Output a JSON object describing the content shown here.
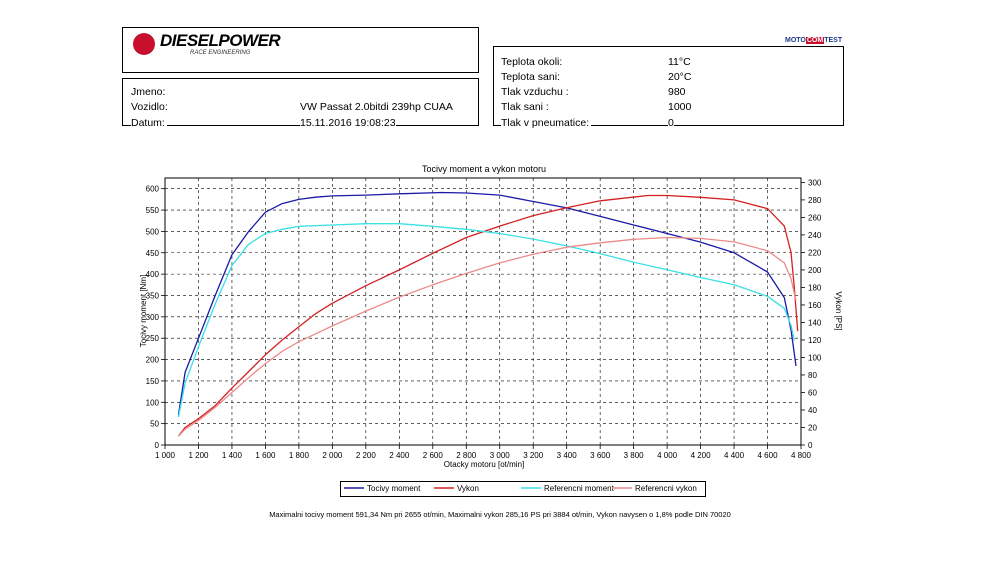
{
  "header": {
    "brand": "DIESELPOWER",
    "brand_sub": "RACE ENGINEERING",
    "moto_left": "MOTO",
    "moto_mid": "COM",
    "moto_right": "TEST"
  },
  "vehicle_info": {
    "name_label": "Jmeno:",
    "name_value": "",
    "vehicle_label": "Vozidlo:",
    "vehicle_value": "VW Passat 2.0bitdi 239hp CUAA",
    "date_label": "Datum:",
    "date_value": "15.11.2016 19:08:23"
  },
  "conditions": [
    {
      "label": "Teplota okoli:",
      "value": "11°C"
    },
    {
      "label": "Teplota sani:",
      "value": "20°C"
    },
    {
      "label": "Tlak vzduchu :",
      "value": "980"
    },
    {
      "label": "Tlak sani :",
      "value": "1000"
    },
    {
      "label": "Tlak v pneumatice:",
      "value": "0"
    }
  ],
  "chart_data": {
    "type": "line",
    "title": "Tocivy moment a vykon motoru",
    "xlabel": "Otacky motoru [ot/min]",
    "ylabel": "Tocivy moment [Nm]",
    "y2label": "Vykon [PS]",
    "xlim": [
      1000,
      4800
    ],
    "ylim": [
      0,
      625
    ],
    "y2lim": [
      0,
      305
    ],
    "xticks": [
      "1 000",
      "1 200",
      "1 400",
      "1 600",
      "1 800",
      "2 000",
      "2 200",
      "2 400",
      "2 600",
      "2 800",
      "3 000",
      "3 200",
      "3 400",
      "3 600",
      "3 800",
      "4 000",
      "4 200",
      "4 400",
      "4 600",
      "4 800"
    ],
    "xtick_values": [
      1000,
      1200,
      1400,
      1600,
      1800,
      2000,
      2200,
      2400,
      2600,
      2800,
      3000,
      3200,
      3400,
      3600,
      3800,
      4000,
      4200,
      4400,
      4600,
      4800
    ],
    "yticks": [
      0,
      50,
      100,
      150,
      200,
      250,
      300,
      350,
      400,
      450,
      500,
      550,
      600
    ],
    "y2ticks": [
      0,
      20,
      40,
      60,
      80,
      100,
      120,
      140,
      160,
      180,
      200,
      220,
      240,
      260,
      280,
      300
    ],
    "grid": true,
    "series": [
      {
        "name": "Tocivy moment",
        "axis": "left",
        "color": "#1a1aa6",
        "points": [
          [
            1080,
            70
          ],
          [
            1120,
            170
          ],
          [
            1200,
            250
          ],
          [
            1300,
            350
          ],
          [
            1400,
            445
          ],
          [
            1500,
            500
          ],
          [
            1600,
            545
          ],
          [
            1700,
            565
          ],
          [
            1800,
            575
          ],
          [
            1900,
            580
          ],
          [
            2000,
            583
          ],
          [
            2200,
            585
          ],
          [
            2400,
            588
          ],
          [
            2655,
            591
          ],
          [
            2800,
            590
          ],
          [
            3000,
            585
          ],
          [
            3200,
            570
          ],
          [
            3400,
            555
          ],
          [
            3600,
            535
          ],
          [
            3800,
            515
          ],
          [
            4000,
            495
          ],
          [
            4200,
            475
          ],
          [
            4400,
            450
          ],
          [
            4600,
            405
          ],
          [
            4700,
            345
          ],
          [
            4740,
            270
          ],
          [
            4770,
            185
          ]
        ]
      },
      {
        "name": "Vykon",
        "axis": "right",
        "color": "#d42020",
        "points": [
          [
            1080,
            10
          ],
          [
            1120,
            20
          ],
          [
            1200,
            30
          ],
          [
            1300,
            45
          ],
          [
            1400,
            65
          ],
          [
            1500,
            84
          ],
          [
            1600,
            103
          ],
          [
            1700,
            120
          ],
          [
            1800,
            135
          ],
          [
            1900,
            150
          ],
          [
            2000,
            162
          ],
          [
            2200,
            182
          ],
          [
            2400,
            200
          ],
          [
            2600,
            219
          ],
          [
            2800,
            237
          ],
          [
            3000,
            250
          ],
          [
            3200,
            262
          ],
          [
            3400,
            271
          ],
          [
            3600,
            279
          ],
          [
            3884,
            285
          ],
          [
            4000,
            285
          ],
          [
            4200,
            283
          ],
          [
            4400,
            280
          ],
          [
            4600,
            270
          ],
          [
            4700,
            250
          ],
          [
            4740,
            220
          ],
          [
            4760,
            180
          ],
          [
            4780,
            130
          ]
        ]
      },
      {
        "name": "Referencni moment",
        "axis": "left",
        "color": "#38e0e8",
        "points": [
          [
            1080,
            65
          ],
          [
            1120,
            145
          ],
          [
            1200,
            230
          ],
          [
            1300,
            330
          ],
          [
            1400,
            420
          ],
          [
            1500,
            470
          ],
          [
            1600,
            495
          ],
          [
            1700,
            505
          ],
          [
            1800,
            512
          ],
          [
            2000,
            515
          ],
          [
            2200,
            518
          ],
          [
            2400,
            518
          ],
          [
            2600,
            512
          ],
          [
            2800,
            505
          ],
          [
            3000,
            495
          ],
          [
            3200,
            482
          ],
          [
            3400,
            466
          ],
          [
            3600,
            448
          ],
          [
            3800,
            428
          ],
          [
            4000,
            410
          ],
          [
            4200,
            392
          ],
          [
            4400,
            375
          ],
          [
            4600,
            348
          ],
          [
            4700,
            320
          ],
          [
            4740,
            280
          ],
          [
            4760,
            245
          ]
        ]
      },
      {
        "name": "Referencni vykon",
        "axis": "right",
        "color": "#ec8a8a",
        "points": [
          [
            1080,
            10
          ],
          [
            1120,
            18
          ],
          [
            1200,
            28
          ],
          [
            1300,
            43
          ],
          [
            1400,
            60
          ],
          [
            1500,
            77
          ],
          [
            1600,
            93
          ],
          [
            1700,
            107
          ],
          [
            1800,
            118
          ],
          [
            1900,
            127
          ],
          [
            2000,
            136
          ],
          [
            2200,
            153
          ],
          [
            2400,
            169
          ],
          [
            2600,
            183
          ],
          [
            2800,
            196
          ],
          [
            3000,
            208
          ],
          [
            3200,
            218
          ],
          [
            3400,
            226
          ],
          [
            3600,
            231
          ],
          [
            3800,
            235
          ],
          [
            4000,
            237
          ],
          [
            4200,
            236
          ],
          [
            4400,
            232
          ],
          [
            4600,
            222
          ],
          [
            4700,
            208
          ],
          [
            4740,
            190
          ],
          [
            4770,
            165
          ]
        ]
      }
    ]
  },
  "footer": {
    "text": "Maximalni tocivy moment 591,34 Nm pri 2655 ot/min,  Maximalni vykon 285,16 PS pri 3884 ot/min,  Vykon navysen o 1,8% podle DIN 70020"
  }
}
